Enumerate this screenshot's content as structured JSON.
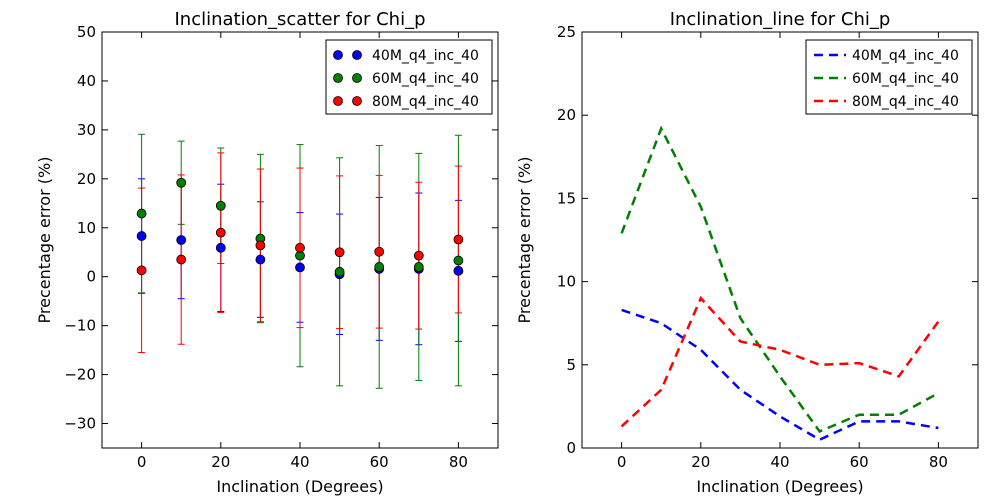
{
  "chart_data": [
    {
      "type": "scatter",
      "title": "Inclination_scatter for Chi_p",
      "xlabel": "Inclination (Degrees)",
      "ylabel": "Precentage error (%)",
      "xlim": [
        -10,
        90
      ],
      "ylim": [
        -35,
        50
      ],
      "xticks": [
        0,
        20,
        40,
        60,
        80
      ],
      "yticks": [
        -30,
        -20,
        -10,
        0,
        10,
        20,
        30,
        40,
        50
      ],
      "grid": false,
      "legend_position": "top-right",
      "error_bars": true,
      "x": [
        0,
        10,
        20,
        30,
        40,
        50,
        60,
        70,
        80
      ],
      "series": [
        {
          "name": "40M_q4_inc_40",
          "color": "#0000ff",
          "values": [
            8.3,
            7.5,
            5.9,
            3.5,
            1.9,
            0.5,
            1.6,
            1.6,
            1.2
          ],
          "error": [
            11.7,
            12.0,
            13.0,
            11.8,
            11.2,
            12.3,
            14.6,
            15.5,
            14.4
          ]
        },
        {
          "name": "60M_q4_inc_40",
          "color": "#008000",
          "values": [
            12.9,
            19.2,
            14.5,
            7.8,
            4.3,
            1.0,
            2.0,
            2.0,
            3.3
          ],
          "error": [
            16.2,
            8.5,
            11.8,
            17.2,
            22.7,
            23.3,
            24.8,
            23.2,
            25.6
          ]
        },
        {
          "name": "80M_q4_inc_40",
          "color": "#ff0000",
          "values": [
            1.3,
            3.5,
            9.0,
            6.4,
            5.9,
            5.0,
            5.1,
            4.3,
            7.6
          ],
          "error": [
            16.8,
            17.3,
            16.3,
            15.6,
            16.3,
            15.6,
            15.6,
            15.0,
            15.0
          ]
        }
      ]
    },
    {
      "type": "line",
      "title": "Inclination_line for Chi_p",
      "xlabel": "Inclination (Degrees)",
      "ylabel": "Precentage error (%)",
      "xlim": [
        -10,
        90
      ],
      "ylim": [
        0,
        25
      ],
      "xticks": [
        0,
        20,
        40,
        60,
        80
      ],
      "yticks": [
        0,
        5,
        10,
        15,
        20,
        25
      ],
      "grid": false,
      "legend_position": "top-right",
      "line_style": "dashed",
      "x": [
        0,
        10,
        20,
        30,
        40,
        50,
        60,
        70,
        80
      ],
      "series": [
        {
          "name": "40M_q4_inc_40",
          "color": "#0000ff",
          "values": [
            8.3,
            7.5,
            5.9,
            3.5,
            1.9,
            0.5,
            1.6,
            1.6,
            1.2
          ]
        },
        {
          "name": "60M_q4_inc_40",
          "color": "#008000",
          "values": [
            12.9,
            19.2,
            14.5,
            7.8,
            4.3,
            1.0,
            2.0,
            2.0,
            3.3
          ]
        },
        {
          "name": "80M_q4_inc_40",
          "color": "#ff0000",
          "values": [
            1.3,
            3.5,
            9.0,
            6.4,
            5.9,
            5.0,
            5.1,
            4.3,
            7.6
          ]
        }
      ]
    }
  ]
}
